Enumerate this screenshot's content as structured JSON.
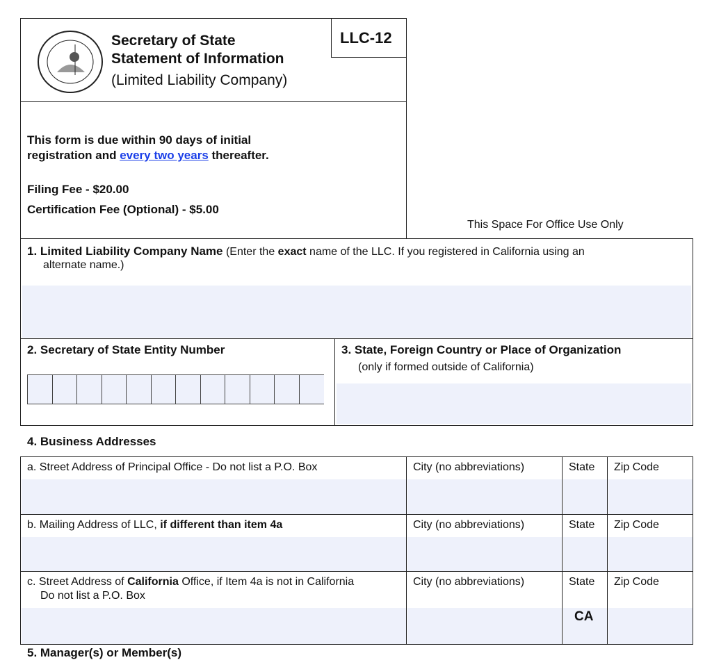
{
  "header": {
    "line1": "Secretary of State",
    "line2": "Statement of Information",
    "line3": "(Limited Liability Company)",
    "form_id": "LLC-12",
    "seal_text": "THE GREAT SEAL OF THE STATE OF CALIFORNIA EUREKA"
  },
  "info": {
    "due_pre": "This form is due within 90 days of initial",
    "due_line2_pre": "registration and ",
    "due_link": "every two years",
    "due_post": " thereafter.",
    "filing_fee": "Filing Fee - $20.00",
    "cert_fee": "Certification Fee (Optional)  - $5.00"
  },
  "office_use": "This Space For Office Use Only",
  "s1": {
    "title": "1. Limited Liability Company Name",
    "pre": " (Enter the ",
    "bold": "exact",
    "post": " name of the LLC.  If you registered in California using an",
    "line2": "alternate name.)",
    "value": ""
  },
  "s2": {
    "title": "2. Secretary of State Entity Number",
    "digits": [
      "",
      "",
      "",
      "",
      "",
      "",
      "",
      "",
      "",
      "",
      "",
      ""
    ]
  },
  "s3": {
    "title": "3. State, Foreign Country or Place of Organization",
    "sub": "(only if formed outside of California)",
    "value": ""
  },
  "s4": {
    "title": "4. Business Addresses",
    "rows": [
      {
        "label_pre": "a. Street Address of Principal Office - Do not list a P.O. Box",
        "label_bold": "",
        "label_post": "",
        "line2": "",
        "city": "City (no abbreviations)",
        "state": "State",
        "zip": "Zip Code",
        "state_value": ""
      },
      {
        "label_pre": "b. Mailing Address of LLC, ",
        "label_bold": "if different than item 4a",
        "label_post": "",
        "line2": "",
        "city": "City (no abbreviations)",
        "state": "State",
        "zip": "Zip Code",
        "state_value": ""
      },
      {
        "label_pre": "c. Street Address of ",
        "label_bold": "California",
        "label_post": " Office, if Item 4a is not in California",
        "line2": "Do not list a P.O. Box",
        "city": "City (no abbreviations)",
        "state": "State",
        "zip": "Zip Code",
        "state_value": "CA"
      }
    ]
  },
  "s5": {
    "title": "5. Manager(s) or Member(s)"
  }
}
